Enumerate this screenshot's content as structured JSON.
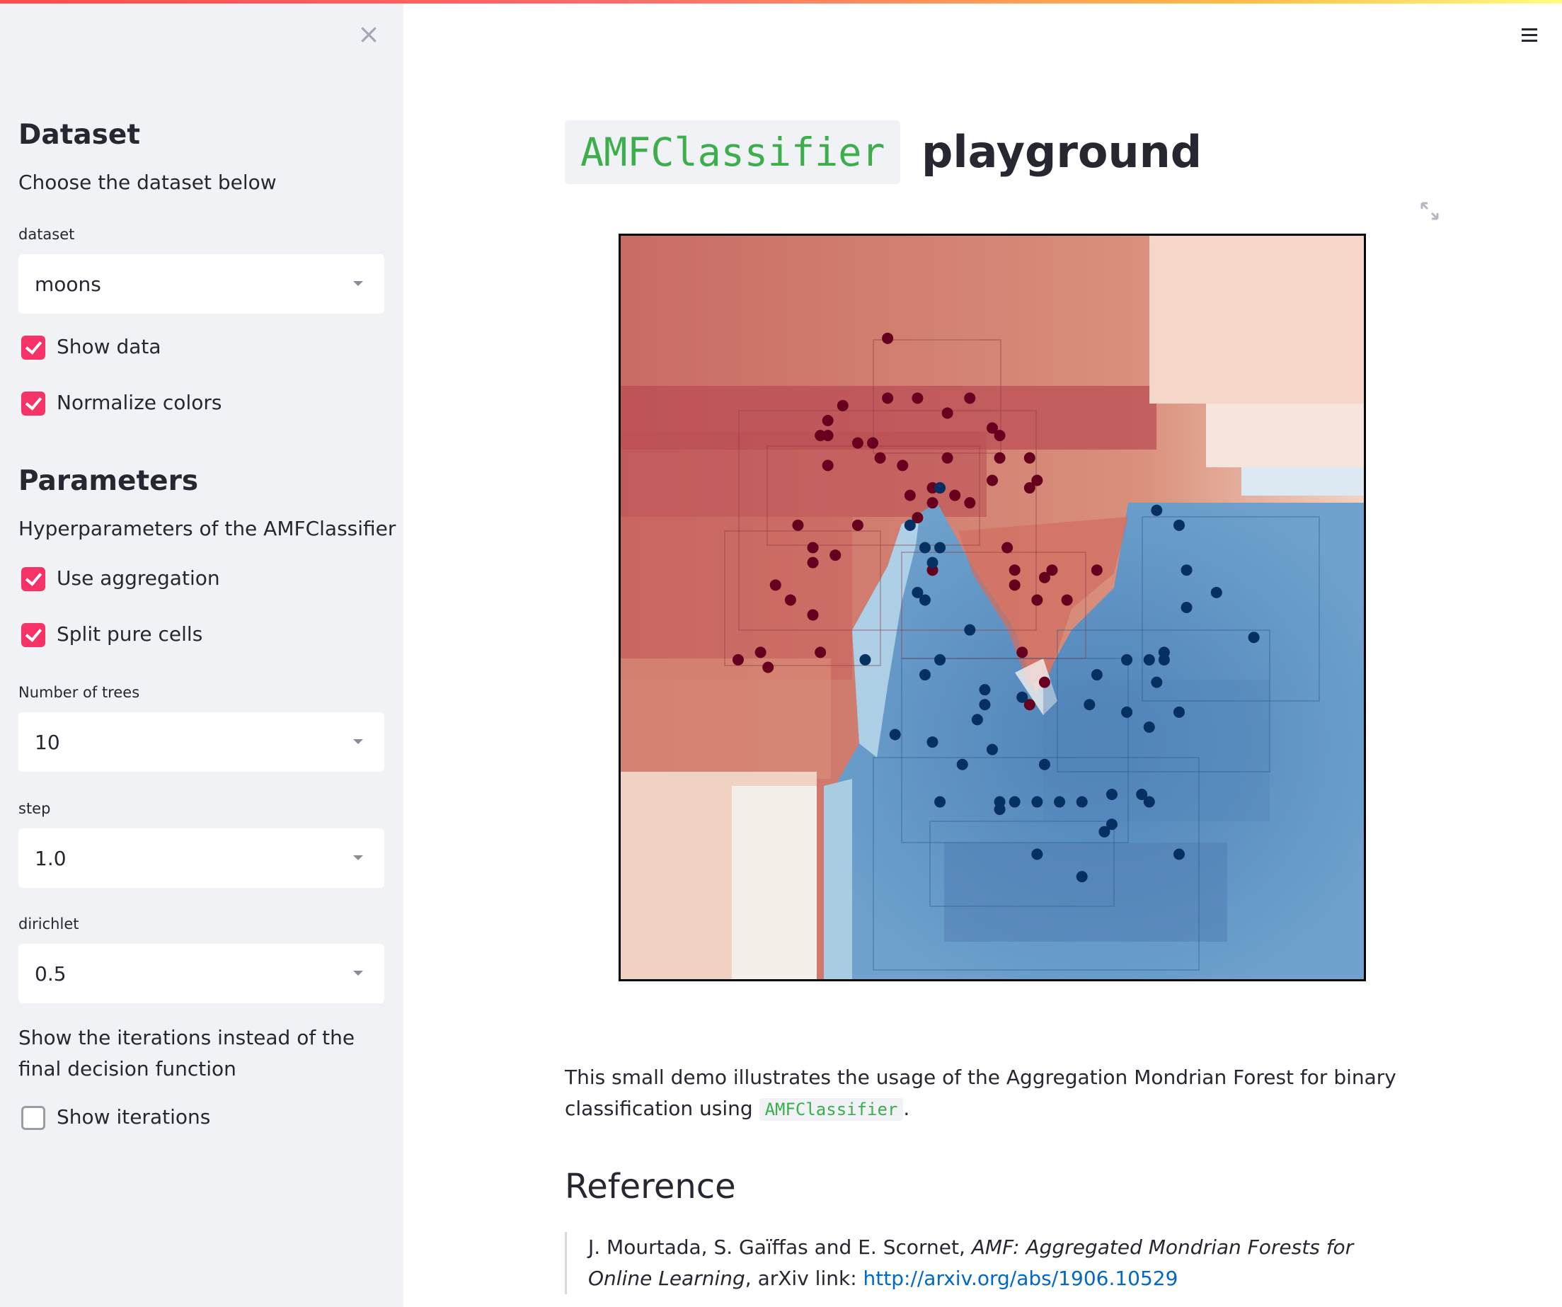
{
  "sidebar": {
    "dataset_heading": "Dataset",
    "dataset_desc": "Choose the dataset below",
    "dataset_label": "dataset",
    "dataset_value": "moons",
    "show_data_label": "Show data",
    "show_data_checked": true,
    "normalize_label": "Normalize colors",
    "normalize_checked": true,
    "params_heading": "Parameters",
    "params_desc": "Hyperparameters of the AMFClassifier",
    "aggregation_label": "Use aggregation",
    "aggregation_checked": true,
    "split_label": "Split pure cells",
    "split_checked": true,
    "trees_label": "Number of trees",
    "trees_value": "10",
    "step_label": "step",
    "step_value": "1.0",
    "dirichlet_label": "dirichlet",
    "dirichlet_value": "0.5",
    "iterations_desc": "Show the iterations instead of the final decision function",
    "iterations_label": "Show iterations",
    "iterations_checked": false
  },
  "main": {
    "title_code": "AMFClassifier",
    "title_text": "playground",
    "desc_text": "This small demo illustrates the usage of the Aggregation Mondrian Forest for binary classification using",
    "desc_code": "AMFClassifier",
    "desc_end": ".",
    "reference_heading": "Reference",
    "ref_authors": "J. Mourtada, S. Gaïffas and E. Scornet, ",
    "ref_title": "AMF: Aggregated Mondrian Forests for Online Learning",
    "ref_mid": ", arXiv link: ",
    "ref_link": "http://arxiv.org/abs/1906.10529"
  },
  "colors": {
    "accent": "#f63366",
    "code_green": "#3cae4b",
    "link": "#0068c9",
    "class0_dark": "#67001f",
    "class1_dark": "#053061"
  },
  "chart_data": {
    "type": "scatter",
    "background": "heatmap",
    "title": "",
    "xlabel": "",
    "ylabel": "",
    "xlim": [
      0,
      1
    ],
    "ylim": [
      0,
      1
    ],
    "grid": false,
    "legend": "none",
    "series": [
      {
        "points": [
          [
            0.36,
            0.86
          ],
          [
            0.36,
            0.78
          ],
          [
            0.4,
            0.78
          ],
          [
            0.47,
            0.78
          ],
          [
            0.3,
            0.77
          ],
          [
            0.28,
            0.75
          ],
          [
            0.27,
            0.73
          ],
          [
            0.28,
            0.73
          ],
          [
            0.32,
            0.72
          ],
          [
            0.34,
            0.72
          ],
          [
            0.35,
            0.7
          ],
          [
            0.38,
            0.69
          ],
          [
            0.28,
            0.69
          ],
          [
            0.44,
            0.76
          ],
          [
            0.5,
            0.74
          ],
          [
            0.51,
            0.73
          ],
          [
            0.51,
            0.7
          ],
          [
            0.55,
            0.7
          ],
          [
            0.44,
            0.7
          ],
          [
            0.42,
            0.66
          ],
          [
            0.45,
            0.65
          ],
          [
            0.4,
            0.62
          ],
          [
            0.42,
            0.64
          ],
          [
            0.47,
            0.64
          ],
          [
            0.39,
            0.65
          ],
          [
            0.5,
            0.67
          ],
          [
            0.56,
            0.67
          ],
          [
            0.55,
            0.66
          ],
          [
            0.32,
            0.61
          ],
          [
            0.24,
            0.61
          ],
          [
            0.26,
            0.58
          ],
          [
            0.29,
            0.57
          ],
          [
            0.26,
            0.56
          ],
          [
            0.21,
            0.53
          ],
          [
            0.23,
            0.51
          ],
          [
            0.19,
            0.44
          ],
          [
            0.16,
            0.43
          ],
          [
            0.2,
            0.42
          ],
          [
            0.27,
            0.44
          ],
          [
            0.26,
            0.49
          ],
          [
            0.42,
            0.55
          ],
          [
            0.52,
            0.58
          ],
          [
            0.53,
            0.53
          ],
          [
            0.57,
            0.54
          ],
          [
            0.58,
            0.55
          ],
          [
            0.53,
            0.55
          ],
          [
            0.56,
            0.51
          ],
          [
            0.6,
            0.51
          ],
          [
            0.64,
            0.55
          ],
          [
            0.54,
            0.44
          ],
          [
            0.57,
            0.4
          ],
          [
            0.55,
            0.37
          ]
        ],
        "class": 0
      },
      {
        "points": [
          [
            0.43,
            0.66
          ],
          [
            0.39,
            0.61
          ],
          [
            0.41,
            0.58
          ],
          [
            0.43,
            0.58
          ],
          [
            0.42,
            0.56
          ],
          [
            0.4,
            0.52
          ],
          [
            0.41,
            0.51
          ],
          [
            0.47,
            0.47
          ],
          [
            0.33,
            0.43
          ],
          [
            0.43,
            0.43
          ],
          [
            0.41,
            0.41
          ],
          [
            0.49,
            0.39
          ],
          [
            0.49,
            0.37
          ],
          [
            0.48,
            0.35
          ],
          [
            0.37,
            0.33
          ],
          [
            0.42,
            0.32
          ],
          [
            0.5,
            0.31
          ],
          [
            0.46,
            0.29
          ],
          [
            0.54,
            0.38
          ],
          [
            0.57,
            0.29
          ],
          [
            0.43,
            0.24
          ],
          [
            0.51,
            0.24
          ],
          [
            0.51,
            0.23
          ],
          [
            0.53,
            0.24
          ],
          [
            0.56,
            0.24
          ],
          [
            0.59,
            0.24
          ],
          [
            0.62,
            0.24
          ],
          [
            0.66,
            0.25
          ],
          [
            0.66,
            0.21
          ],
          [
            0.65,
            0.2
          ],
          [
            0.7,
            0.25
          ],
          [
            0.71,
            0.24
          ],
          [
            0.56,
            0.17
          ],
          [
            0.62,
            0.14
          ],
          [
            0.75,
            0.17
          ],
          [
            0.72,
            0.63
          ],
          [
            0.75,
            0.61
          ],
          [
            0.76,
            0.55
          ],
          [
            0.8,
            0.52
          ],
          [
            0.76,
            0.5
          ],
          [
            0.85,
            0.46
          ],
          [
            0.68,
            0.43
          ],
          [
            0.71,
            0.43
          ],
          [
            0.73,
            0.44
          ],
          [
            0.73,
            0.43
          ],
          [
            0.72,
            0.4
          ],
          [
            0.64,
            0.41
          ],
          [
            0.63,
            0.37
          ],
          [
            0.68,
            0.36
          ],
          [
            0.71,
            0.34
          ],
          [
            0.75,
            0.36
          ]
        ],
        "class": 1
      }
    ]
  }
}
